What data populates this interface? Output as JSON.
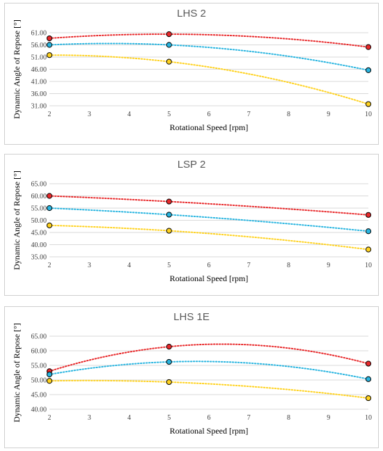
{
  "chart_data": [
    {
      "type": "scatter",
      "title": "LHS 2",
      "xlabel": "Rotational Speed [rpm]",
      "ylabel": "Dynamic Angle of Repose [°]",
      "xlim": [
        2,
        10
      ],
      "ylim": [
        31.0,
        61.0
      ],
      "x_ticks": [
        2,
        3,
        4,
        5,
        6,
        7,
        8,
        9,
        10
      ],
      "y_ticks": [
        "31.00",
        "36.00",
        "41.00",
        "46.00",
        "51.00",
        "56.00",
        "61.00"
      ],
      "grid": true,
      "trendline": "polynomial order 2 (dotted)",
      "series": [
        {
          "color": "#E8292B",
          "x": [
            2,
            5,
            10
          ],
          "values": [
            58.7,
            60.4,
            55.1
          ]
        },
        {
          "color": "#29B5E0",
          "x": [
            2,
            5,
            10
          ],
          "values": [
            56.0,
            56.0,
            45.6
          ]
        },
        {
          "color": "#FFD21F",
          "x": [
            2,
            5,
            10
          ],
          "values": [
            51.8,
            49.1,
            31.7
          ]
        }
      ]
    },
    {
      "type": "scatter",
      "title": "LSP 2",
      "xlabel": "Rotational Speed [rpm]",
      "ylabel": "Dynamic Angle of Repose [°]",
      "xlim": [
        2,
        10
      ],
      "ylim": [
        35.0,
        65.0
      ],
      "x_ticks": [
        2,
        3,
        4,
        5,
        6,
        7,
        8,
        9,
        10
      ],
      "y_ticks": [
        "35.00",
        "40.00",
        "45.00",
        "50.00",
        "55.00",
        "60.00",
        "65.00"
      ],
      "grid": true,
      "trendline": "polynomial order 2 (dotted)",
      "series": [
        {
          "color": "#E8292B",
          "x": [
            2,
            5,
            10
          ],
          "values": [
            60.0,
            57.7,
            52.2
          ]
        },
        {
          "color": "#29B5E0",
          "x": [
            2,
            5,
            10
          ],
          "values": [
            55.0,
            52.3,
            45.5
          ]
        },
        {
          "color": "#FFD21F",
          "x": [
            2,
            5,
            10
          ],
          "values": [
            47.9,
            45.7,
            38.0
          ]
        }
      ]
    },
    {
      "type": "scatter",
      "title": "LHS 1E",
      "xlabel": "Rotational Speed [rpm]",
      "ylabel": "Dynamic Angle of Repose [°]",
      "xlim": [
        2,
        10
      ],
      "ylim": [
        40.0,
        65.0
      ],
      "x_ticks": [
        2,
        3,
        4,
        5,
        6,
        7,
        8,
        9,
        10
      ],
      "y_ticks": [
        "40.00",
        "45.00",
        "50.00",
        "55.00",
        "60.00",
        "65.00"
      ],
      "grid": true,
      "trendline": "polynomial order 2 (dotted)",
      "series": [
        {
          "color": "#E8292B",
          "x": [
            2,
            5,
            10
          ],
          "values": [
            53.0,
            61.4,
            55.6
          ]
        },
        {
          "color": "#29B5E0",
          "x": [
            2,
            5,
            10
          ],
          "values": [
            51.9,
            56.2,
            50.3
          ]
        },
        {
          "color": "#FFD21F",
          "x": [
            2,
            5,
            10
          ],
          "values": [
            49.7,
            49.3,
            43.8
          ]
        }
      ]
    }
  ]
}
